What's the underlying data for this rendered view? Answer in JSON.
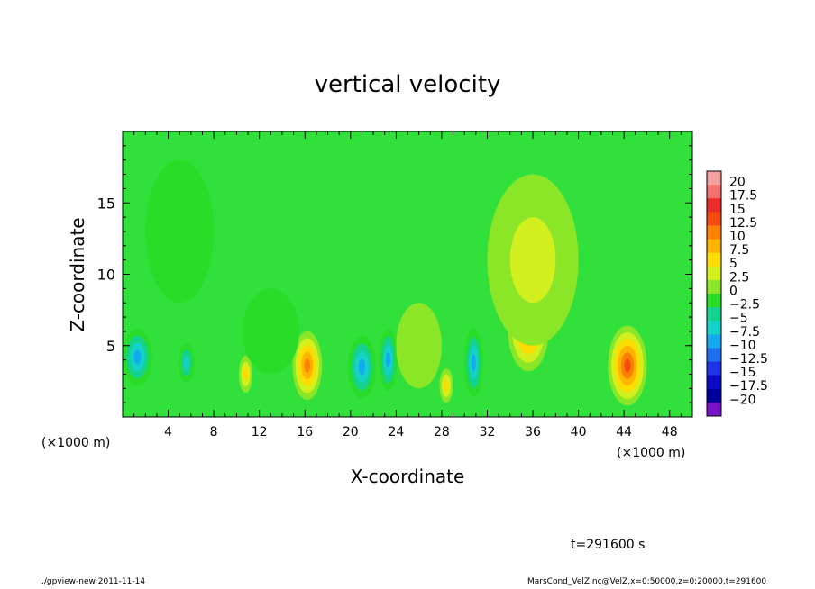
{
  "chart_data": {
    "type": "heatmap",
    "title": "vertical velocity",
    "xlabel": "X-coordinate",
    "ylabel": "Z-coordinate",
    "x_unit_left": "(×1000 m)",
    "x_unit_right": "(×1000 m)",
    "xlim": [
      0,
      50
    ],
    "ylim": [
      0,
      20
    ],
    "x_ticks": [
      4,
      8,
      12,
      16,
      20,
      24,
      28,
      32,
      36,
      40,
      44,
      48
    ],
    "y_ticks": [
      5,
      10,
      15
    ],
    "colorbar_levels": [
      20,
      17.5,
      15,
      12.5,
      10,
      7.5,
      5,
      2.5,
      0,
      -2.5,
      -5,
      -7.5,
      -10,
      -12.5,
      -15,
      -17.5,
      -20
    ],
    "colorbar_colors": [
      "#f5a0a0",
      "#f57070",
      "#ee2b2b",
      "#f54a10",
      "#ff8000",
      "#ffb400",
      "#ffdc00",
      "#d2f01e",
      "#8ce628",
      "#28dc28",
      "#14d28c",
      "#14d2c8",
      "#14aaf0",
      "#1e6ef0",
      "#1e32e6",
      "#0a0ac8",
      "#0000a0",
      "#7814c8"
    ],
    "features": [
      {
        "x": 1.3,
        "z": 4.2,
        "w": -11,
        "rx": 1.3,
        "rz": 2.0
      },
      {
        "x": 5.6,
        "z": 3.8,
        "w": -8,
        "rx": 0.7,
        "rz": 1.4
      },
      {
        "x": 10.8,
        "z": 3.0,
        "w": 7,
        "rx": 0.6,
        "rz": 1.3
      },
      {
        "x": 16.2,
        "z": 3.6,
        "w": 12,
        "rx": 1.3,
        "rz": 2.4
      },
      {
        "x": 21.0,
        "z": 3.5,
        "w": -10,
        "rx": 1.2,
        "rz": 2.2
      },
      {
        "x": 23.3,
        "z": 4.0,
        "w": -9,
        "rx": 0.8,
        "rz": 2.2
      },
      {
        "x": 28.4,
        "z": 2.2,
        "w": 8,
        "rx": 0.6,
        "rz": 1.2
      },
      {
        "x": 30.8,
        "z": 3.8,
        "w": -10,
        "rx": 0.8,
        "rz": 2.4
      },
      {
        "x": 35.6,
        "z": 6.2,
        "w": 13,
        "rx": 1.8,
        "rz": 3.0
      },
      {
        "x": 44.3,
        "z": 3.6,
        "w": 15,
        "rx": 1.7,
        "rz": 2.8
      },
      {
        "x": 13.0,
        "z": 6.0,
        "w": -3,
        "rx": 2.5,
        "rz": 3.0
      },
      {
        "x": 5.0,
        "z": 13.0,
        "w": -2,
        "rx": 3.0,
        "rz": 5.0
      },
      {
        "x": 36.0,
        "z": 11.0,
        "w": 4,
        "rx": 4.0,
        "rz": 6.0
      },
      {
        "x": 26.0,
        "z": 5.0,
        "w": 3,
        "rx": 2.0,
        "rz": 3.0
      }
    ]
  },
  "time_label": "t=291600 s",
  "footer_left": "./gpview-new   2011-11-14",
  "footer_right": "MarsCond_VelZ.nc@VelZ,x=0:50000,z=0:20000,t=291600"
}
